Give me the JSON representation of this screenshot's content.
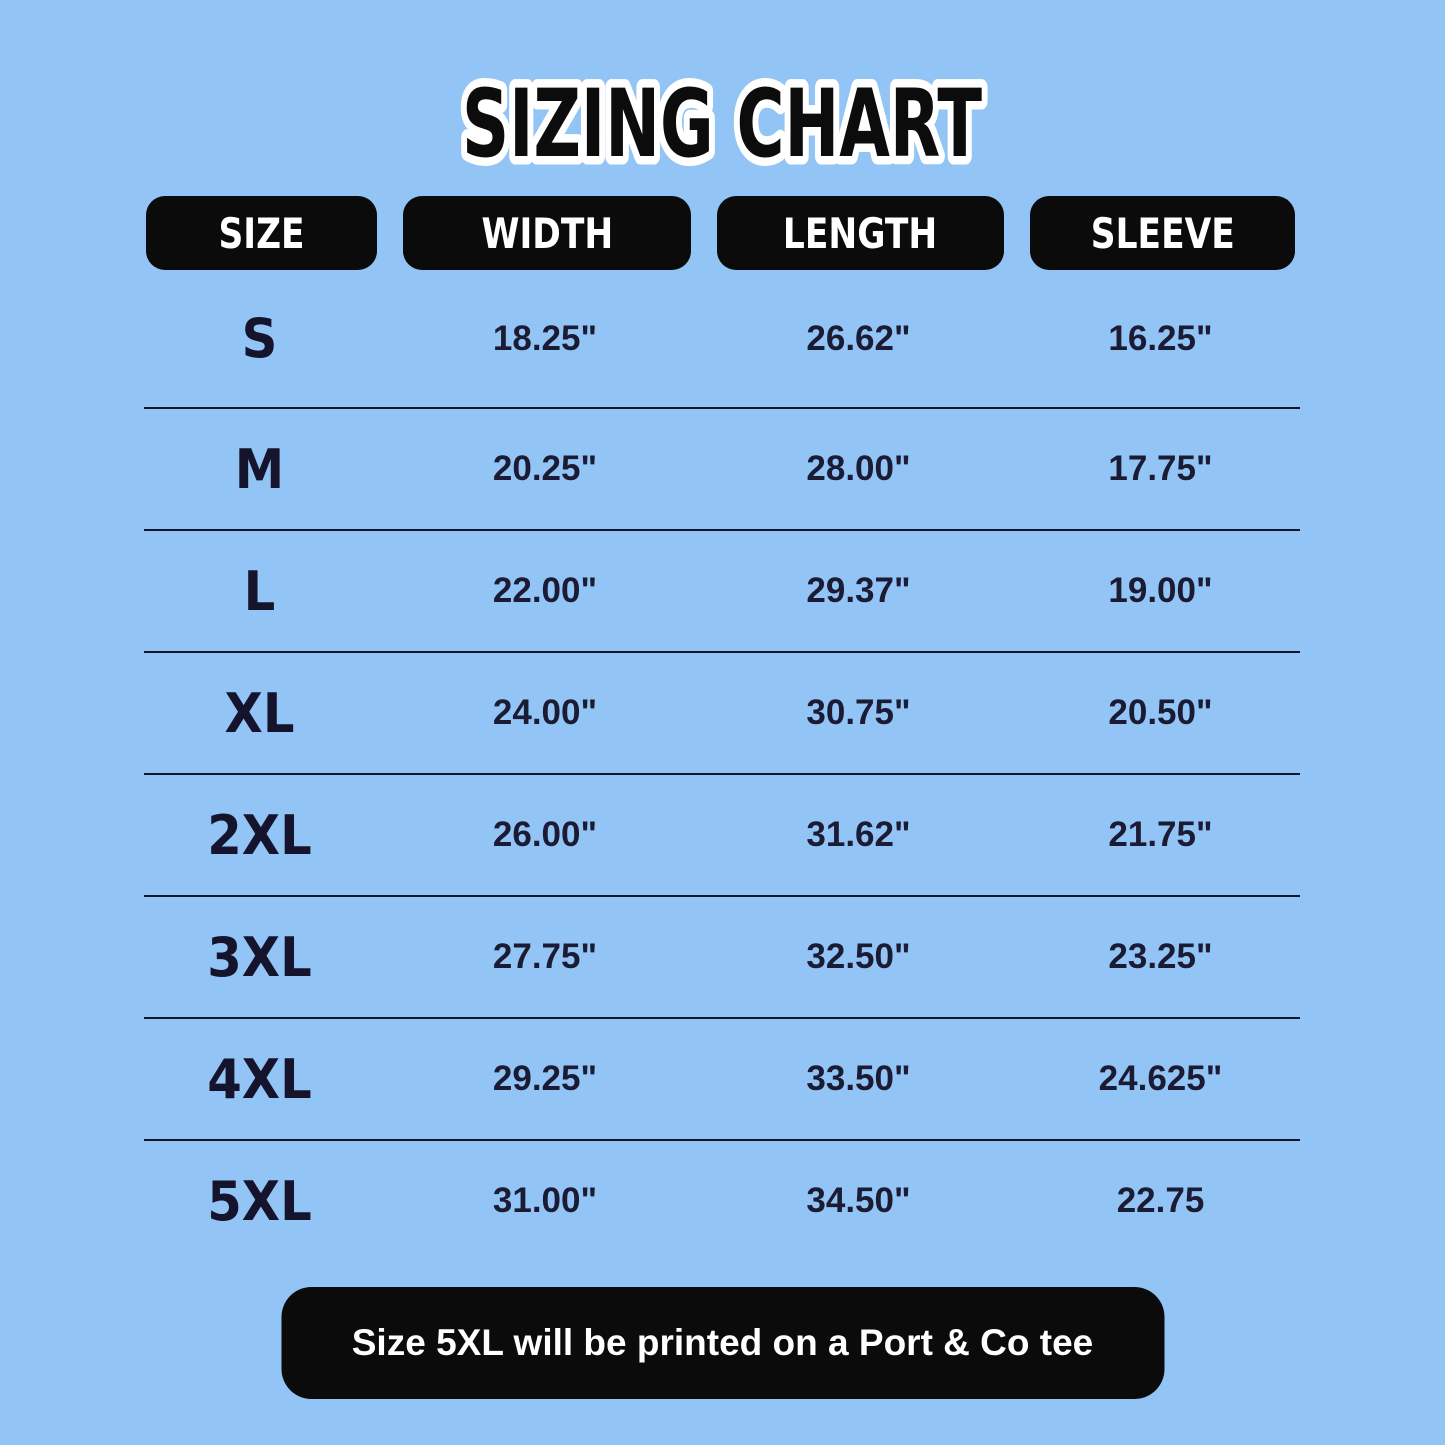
{
  "title": "SIZING CHART",
  "table": {
    "headers": [
      "SIZE",
      "WIDTH",
      "LENGTH",
      "SLEEVE"
    ],
    "rows": [
      {
        "size": "S",
        "width": "18.25\"",
        "length": "26.62\"",
        "sleeve": "16.25\""
      },
      {
        "size": "M",
        "width": "20.25\"",
        "length": "28.00\"",
        "sleeve": "17.75\""
      },
      {
        "size": "L",
        "width": "22.00\"",
        "length": "29.37\"",
        "sleeve": "19.00\""
      },
      {
        "size": "XL",
        "width": "24.00\"",
        "length": "30.75\"",
        "sleeve": "20.50\""
      },
      {
        "size": "2XL",
        "width": "26.00\"",
        "length": "31.62\"",
        "sleeve": "21.75\""
      },
      {
        "size": "3XL",
        "width": "27.75\"",
        "length": "32.50\"",
        "sleeve": "23.25\""
      },
      {
        "size": "4XL",
        "width": "29.25\"",
        "length": "33.50\"",
        "sleeve": "24.625\""
      },
      {
        "size": "5XL",
        "width": "31.00\"",
        "length": "34.50\"",
        "sleeve": "22.75"
      }
    ]
  },
  "footer": {
    "note": "Size 5XL will be printed on a Port & Co tee"
  },
  "colors": {
    "background": "#92c4f6",
    "pill_black": "#0b0b0b",
    "text_navy": "#1b1b33",
    "title_fill": "#0c0c0c",
    "title_outline": "#ffffff",
    "divider": "#12152a",
    "white": "#ffffff"
  },
  "chart_data": {
    "type": "table",
    "title": "SIZING CHART",
    "columns": [
      "SIZE",
      "WIDTH",
      "LENGTH",
      "SLEEVE"
    ],
    "rows": [
      [
        "S",
        "18.25\"",
        "26.62\"",
        "16.25\""
      ],
      [
        "M",
        "20.25\"",
        "28.00\"",
        "17.75\""
      ],
      [
        "L",
        "22.00\"",
        "29.37\"",
        "19.00\""
      ],
      [
        "XL",
        "24.00\"",
        "30.75\"",
        "20.50\""
      ],
      [
        "2XL",
        "26.00\"",
        "31.62\"",
        "21.75\""
      ],
      [
        "3XL",
        "27.75\"",
        "32.50\"",
        "23.25\""
      ],
      [
        "4XL",
        "29.25\"",
        "33.50\"",
        "24.625\""
      ],
      [
        "5XL",
        "31.00\"",
        "34.50\"",
        "22.75"
      ]
    ],
    "footnote": "Size 5XL will be printed on a Port & Co tee",
    "units": "inches"
  }
}
